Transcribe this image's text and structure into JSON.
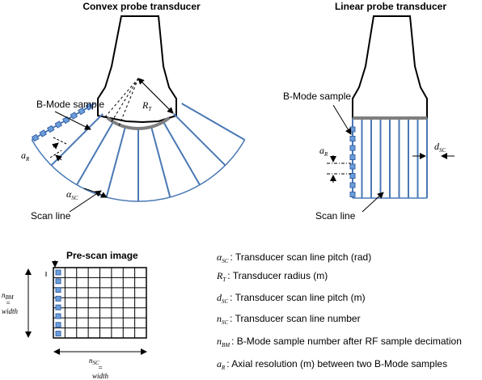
{
  "titles": {
    "convex": "Convex probe transducer",
    "linear": "Linear probe transducer",
    "prescan": "Pre-scan image"
  },
  "labels": {
    "bmode_convex": "B-Mode sample",
    "bmode_linear": "B-Mode sample",
    "scanline_convex": "Scan line",
    "scanline_linear": "Scan line"
  },
  "symbols": {
    "R_T": {
      "base": "R",
      "sub": "T"
    },
    "a_R": {
      "base": "a",
      "sub": "R"
    },
    "alpha_SC": {
      "base": "α",
      "sub": "SC"
    },
    "d_SC": {
      "base": "d",
      "sub": "SC"
    },
    "n_SC": {
      "base": "n",
      "sub": "SC"
    },
    "n_BM": {
      "base": "n",
      "sub": "BM"
    },
    "eq": "=",
    "width": "width"
  },
  "legend": [
    {
      "base": "α",
      "sub": "SC",
      "text": ": Transducer scan line pitch (rad)"
    },
    {
      "base": "R",
      "sub": "T",
      "text": ": Transducer radius (m)"
    },
    {
      "base": "d",
      "sub": "SC",
      "text": ": Transducer scan line pitch (m)"
    },
    {
      "base": "n",
      "sub": "SC",
      "text": ": Transducer scan line number"
    },
    {
      "base": "n",
      "sub": "BM",
      "text": ": B-Mode sample number after RF sample decimation"
    },
    {
      "base": "a",
      "sub": "R",
      "text": ": Axial resolution (m) between two B-Mode samples"
    }
  ],
  "colors": {
    "scanline": "#4a78b5",
    "sample_fill": "#6a9edb",
    "sample_stroke": "#3b64a8",
    "element_bar": "#7f7f7f",
    "outline": "#000000"
  }
}
